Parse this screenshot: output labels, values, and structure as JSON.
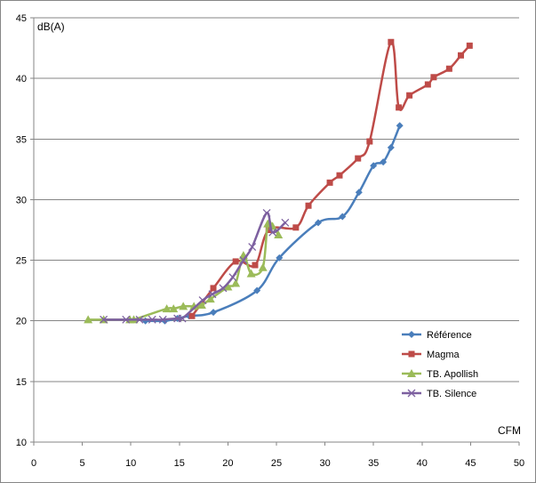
{
  "chart_data": {
    "type": "scatter",
    "title": "",
    "xlabel": "CFM",
    "ylabel": "dB(A)",
    "xlim": [
      0,
      50
    ],
    "ylim": [
      10,
      45
    ],
    "x_ticks": [
      0,
      5,
      10,
      15,
      20,
      25,
      30,
      35,
      40,
      45,
      50
    ],
    "y_ticks": [
      10,
      15,
      20,
      25,
      30,
      35,
      40,
      45
    ],
    "grid": "horizontal",
    "legend_position": "right",
    "series": [
      {
        "name": "Référence",
        "color": "#4a7ebb",
        "marker": "diamond",
        "points": [
          [
            11.5,
            20.0
          ],
          [
            13.5,
            20.0
          ],
          [
            14.8,
            20.2
          ],
          [
            16.0,
            20.4
          ],
          [
            18.5,
            20.7
          ],
          [
            23.0,
            22.5
          ],
          [
            25.3,
            25.2
          ],
          [
            29.3,
            28.1
          ],
          [
            31.8,
            28.6
          ],
          [
            33.5,
            30.6
          ],
          [
            35.0,
            32.8
          ],
          [
            36.0,
            33.1
          ],
          [
            36.8,
            34.3
          ],
          [
            37.7,
            36.1
          ]
        ]
      },
      {
        "name": "Magma",
        "color": "#be4b48",
        "marker": "square",
        "points": [
          [
            16.3,
            20.4
          ],
          [
            18.5,
            22.7
          ],
          [
            20.8,
            24.9
          ],
          [
            22.8,
            24.6
          ],
          [
            24.2,
            27.5
          ],
          [
            27.0,
            27.7
          ],
          [
            28.3,
            29.5
          ],
          [
            30.5,
            31.4
          ],
          [
            31.5,
            32.0
          ],
          [
            33.4,
            33.4
          ],
          [
            34.6,
            34.8
          ],
          [
            36.8,
            43.0
          ],
          [
            37.6,
            37.6
          ],
          [
            38.7,
            38.6
          ],
          [
            40.6,
            39.5
          ],
          [
            41.2,
            40.1
          ],
          [
            42.8,
            40.8
          ],
          [
            44.0,
            41.9
          ],
          [
            44.9,
            42.7
          ]
        ]
      },
      {
        "name": "TB. Apollish",
        "color": "#9bbb59",
        "marker": "triangle",
        "points": [
          [
            5.6,
            20.1
          ],
          [
            7.2,
            20.1
          ],
          [
            9.9,
            20.1
          ],
          [
            10.3,
            20.1
          ],
          [
            13.7,
            21.0
          ],
          [
            14.4,
            21.0
          ],
          [
            15.4,
            21.2
          ],
          [
            16.5,
            21.2
          ],
          [
            17.3,
            21.3
          ],
          [
            18.2,
            21.8
          ],
          [
            20.0,
            22.8
          ],
          [
            20.8,
            23.1
          ],
          [
            21.6,
            25.4
          ],
          [
            22.4,
            23.9
          ],
          [
            23.6,
            24.4
          ],
          [
            24.1,
            28.0
          ],
          [
            24.6,
            27.8
          ],
          [
            25.2,
            27.1
          ]
        ]
      },
      {
        "name": "TB. Silence",
        "color": "#7d60a0",
        "marker": "x",
        "points": [
          [
            7.2,
            20.1
          ],
          [
            9.5,
            20.1
          ],
          [
            10.9,
            20.1
          ],
          [
            12.2,
            20.1
          ],
          [
            13.3,
            20.1
          ],
          [
            14.8,
            20.2
          ],
          [
            15.3,
            20.2
          ],
          [
            17.4,
            21.7
          ],
          [
            18.4,
            22.2
          ],
          [
            19.5,
            22.7
          ],
          [
            20.5,
            23.6
          ],
          [
            21.6,
            25.0
          ],
          [
            22.5,
            26.1
          ],
          [
            24.0,
            28.9
          ],
          [
            24.6,
            27.3
          ],
          [
            25.9,
            28.1
          ]
        ]
      }
    ]
  }
}
